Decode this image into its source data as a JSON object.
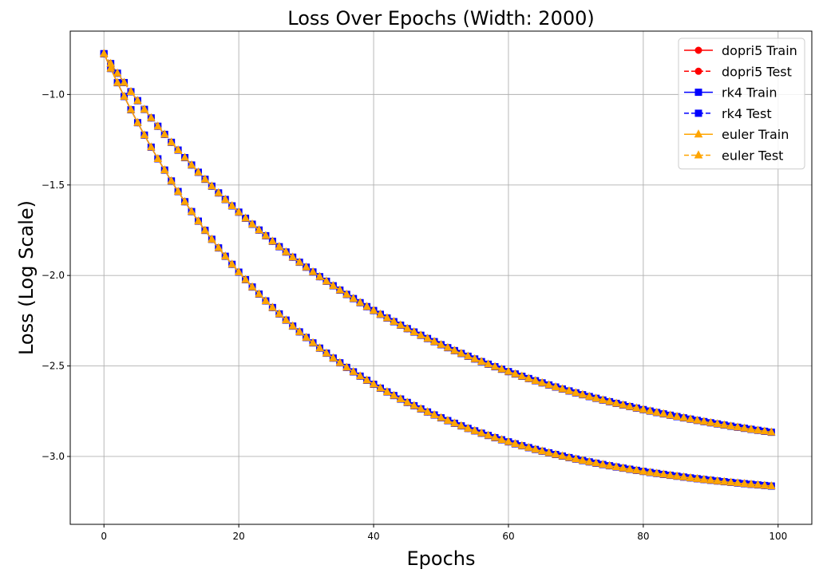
{
  "chart_data": {
    "type": "line",
    "title": "Loss Over Epochs (Width: 2000)",
    "xlabel": "Epochs",
    "ylabel": "Loss (Log Scale)",
    "xlim": [
      -5,
      105
    ],
    "ylim": [
      -3.375,
      -0.65
    ],
    "xticks": [
      0,
      20,
      40,
      60,
      80,
      100
    ],
    "yticks": [
      -1.0,
      -1.5,
      -2.0,
      -2.5,
      -3.0
    ],
    "ytick_labels": [
      "−1.0",
      "−1.5",
      "−2.0",
      "−2.5",
      "−3.0"
    ],
    "grid": true,
    "legend_position": "top-right",
    "train_curve": {
      "start": -0.775,
      "end": -3.255,
      "tau": 30.0
    },
    "test_curve": {
      "start": -0.775,
      "end": -3.085,
      "tau": 42.0
    },
    "epochs": {
      "start": 0,
      "end": 99,
      "step": 1
    },
    "series": [
      {
        "name": "dopri5 Train",
        "curve": "train",
        "color": "#ff0000",
        "dash": "solid",
        "marker": "circle"
      },
      {
        "name": "dopri5 Test",
        "curve": "test",
        "color": "#ff0000",
        "dash": "dashed",
        "marker": "circle"
      },
      {
        "name": "rk4 Train",
        "curve": "train",
        "color": "#0000ff",
        "dash": "solid",
        "marker": "square"
      },
      {
        "name": "rk4 Test",
        "curve": "test",
        "color": "#0000ff",
        "dash": "dashed",
        "marker": "square"
      },
      {
        "name": "euler Train",
        "curve": "train",
        "color": "#ffa500",
        "dash": "solid",
        "marker": "triangle"
      },
      {
        "name": "euler Test",
        "curve": "test",
        "color": "#ffa500",
        "dash": "dashed",
        "marker": "triangle"
      }
    ]
  }
}
